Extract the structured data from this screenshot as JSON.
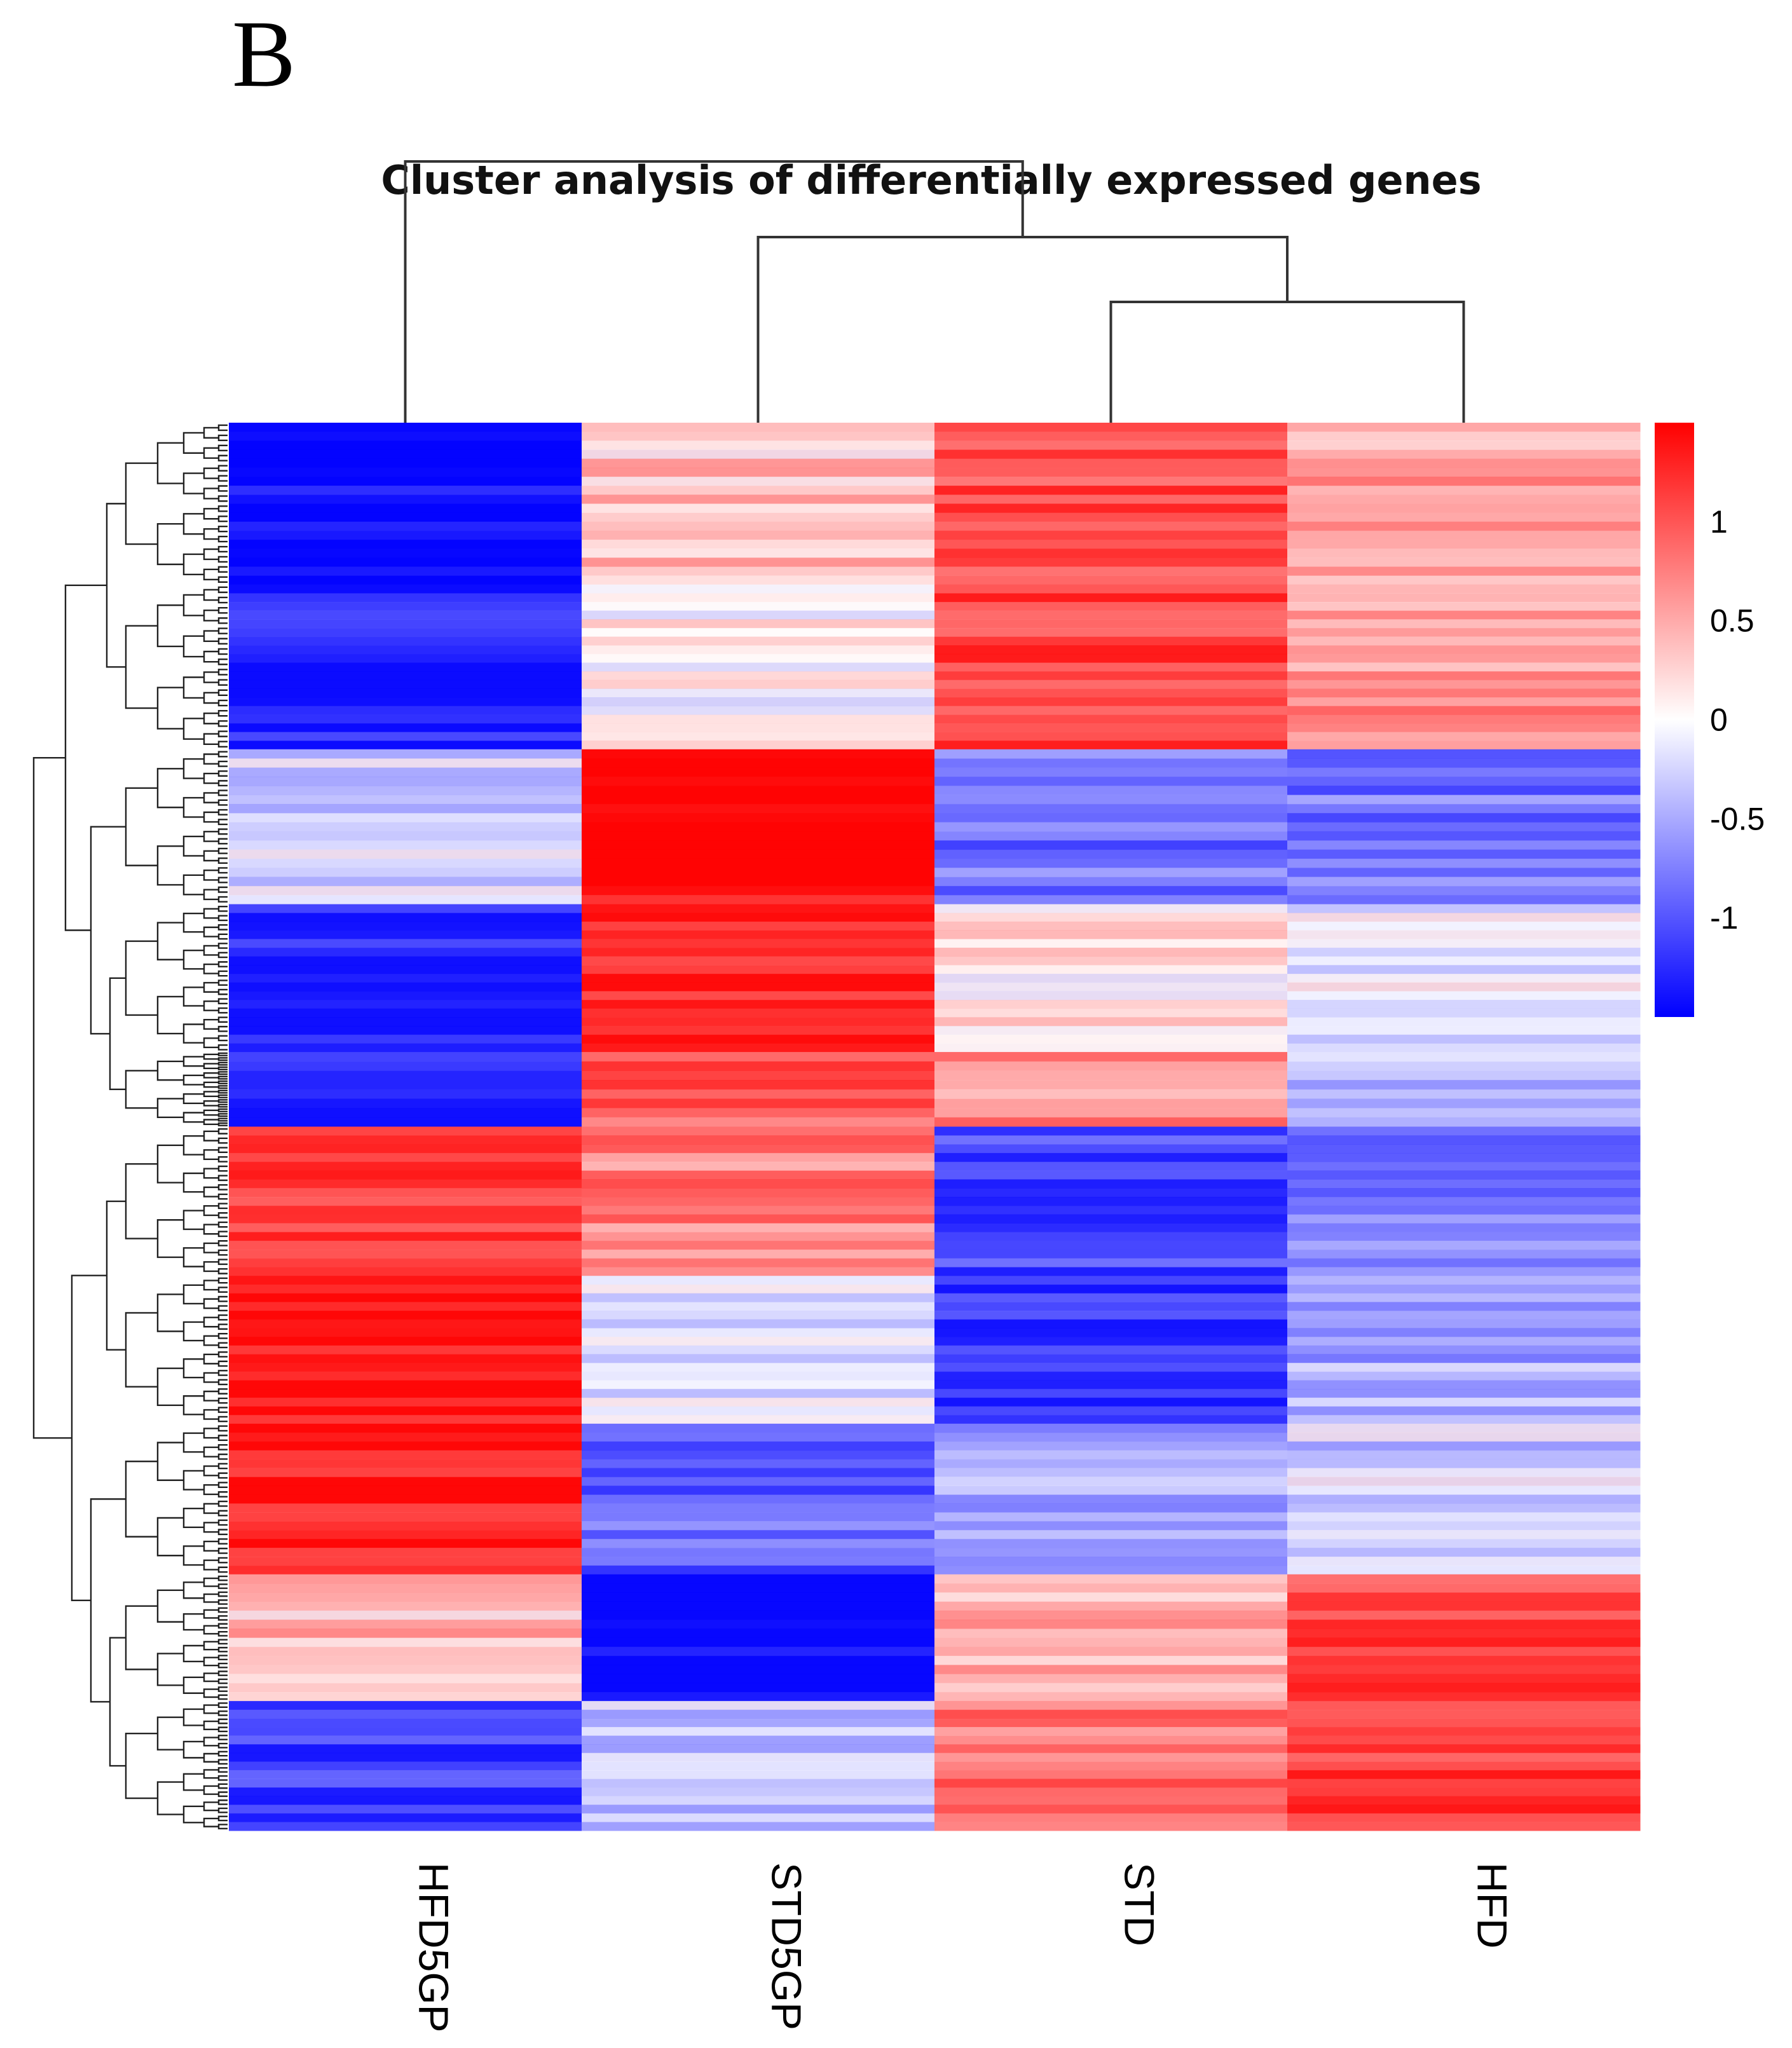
{
  "panel_label": "B",
  "chart_data": {
    "type": "heatmap",
    "title": "Cluster analysis of differentially expressed genes",
    "columns": [
      "HFD5GP",
      "STD5GP",
      "STD",
      "HFD"
    ],
    "column_dendrogram": {
      "merges": [
        {
          "left": "STD",
          "right": "HFD",
          "height": 1.0
        },
        {
          "left": "STD5GP",
          "right": "STD+HFD",
          "height": 1.6
        },
        {
          "left": "HFD5GP",
          "right": "STD5GP+STD+HFD",
          "height": 2.3
        }
      ]
    },
    "row_dendrogram": "hierarchical clustering of gene rows (shown on left)",
    "colorbar": {
      "min": -1.5,
      "max": 1.5,
      "ticks": [
        1,
        0.5,
        0,
        -0.5,
        -1
      ],
      "tick_labels": [
        "1",
        "0.5",
        "0",
        "-0.5",
        "-1"
      ],
      "low_color": "#0000ff",
      "mid_color": "#ffffff",
      "high_color": "#ff0000"
    },
    "row_blocks": [
      {
        "fraction": 0.115,
        "values": [
          -1.45,
          0.35,
          1.05,
          0.55
        ]
      },
      {
        "fraction": 0.117,
        "values": [
          -1.35,
          0.05,
          1.15,
          0.65
        ]
      },
      {
        "fraction": 0.11,
        "values": [
          -0.25,
          1.45,
          -0.85,
          -0.8
        ]
      },
      {
        "fraction": 0.105,
        "values": [
          -1.3,
          1.35,
          0.15,
          -0.15
        ]
      },
      {
        "fraction": 0.053,
        "values": [
          -1.3,
          0.95,
          0.65,
          -0.35
        ]
      },
      {
        "fraction": 0.106,
        "values": [
          1.25,
          0.75,
          -1.1,
          -0.75
        ]
      },
      {
        "fraction": 0.105,
        "values": [
          1.4,
          -0.1,
          -1.25,
          -0.5
        ]
      },
      {
        "fraction": 0.107,
        "values": [
          1.4,
          -0.9,
          -0.55,
          -0.3
        ]
      },
      {
        "fraction": 0.09,
        "values": [
          0.4,
          -1.4,
          0.45,
          1.1
        ]
      },
      {
        "fraction": 0.092,
        "values": [
          -1.2,
          -0.35,
          0.85,
          1.2
        ]
      }
    ]
  }
}
